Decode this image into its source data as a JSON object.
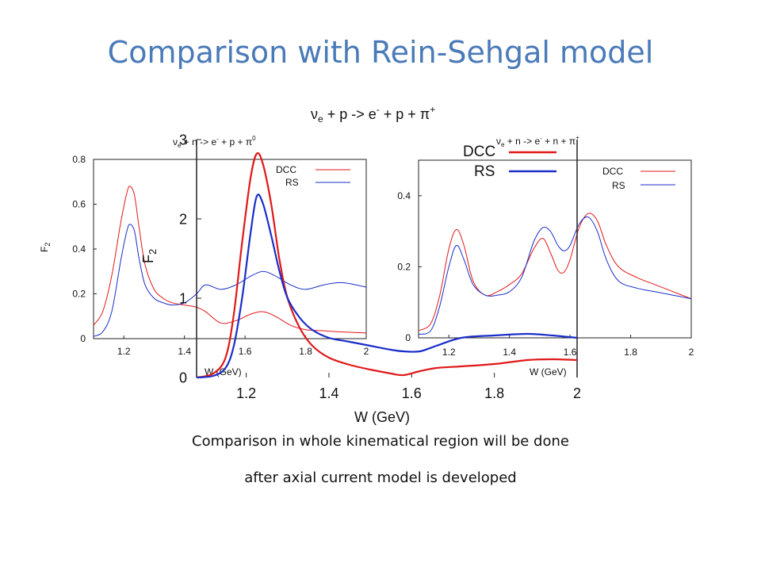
{
  "title": "Comparison with Rein-Sehgal model",
  "captions": [
    "Comparison in whole kinematical region will be done",
    "after axial current model is developed"
  ],
  "figure": {
    "main_reaction_label": "ν e + p -> e - + p + π +",
    "left_reaction_label": "ν e + n -> e - + p + π 0",
    "right_reaction_label": "ν e + n -> e - + n + π +",
    "x_axis_label": "W (GeV)",
    "y_axis_label": "F 2"
  },
  "colors": {
    "DCC": "#e01818",
    "RS": "#1a2ec8"
  },
  "chart_data": [
    {
      "id": "main",
      "type": "line",
      "title": "ν e + p -> e - + p + π +",
      "xlabel": "W (GeV)",
      "ylabel": "",
      "xlim": [
        1.08,
        2.0
      ],
      "ylim": [
        0,
        3
      ],
      "xticks": [
        "1.2",
        "1.4",
        "1.6",
        "1.8",
        "2"
      ],
      "yticks": [
        "0",
        "1",
        "2",
        "3"
      ],
      "legend": "top-center",
      "series": [
        {
          "name": "DCC",
          "color": "#e01818",
          "x": [
            1.08,
            1.12,
            1.15,
            1.17,
            1.19,
            1.21,
            1.225,
            1.24,
            1.26,
            1.28,
            1.3,
            1.33,
            1.36,
            1.4,
            1.45,
            1.5,
            1.55,
            1.58,
            1.62,
            1.66,
            1.72,
            1.8,
            1.88,
            1.94,
            2.0
          ],
          "y": [
            0.0,
            0.05,
            0.25,
            0.8,
            1.7,
            2.5,
            2.82,
            2.7,
            2.2,
            1.5,
            1.0,
            0.62,
            0.4,
            0.25,
            0.16,
            0.1,
            0.05,
            0.03,
            0.08,
            0.12,
            0.14,
            0.17,
            0.22,
            0.23,
            0.22
          ]
        },
        {
          "name": "RS",
          "color": "#1a2ec8",
          "x": [
            1.08,
            1.12,
            1.15,
            1.17,
            1.19,
            1.21,
            1.225,
            1.24,
            1.26,
            1.28,
            1.3,
            1.33,
            1.36,
            1.4,
            1.45,
            1.5,
            1.55,
            1.58,
            1.62,
            1.66,
            1.72,
            1.8,
            1.88,
            1.94,
            2.0
          ],
          "y": [
            0.0,
            0.02,
            0.12,
            0.4,
            1.0,
            1.8,
            2.28,
            2.2,
            1.8,
            1.35,
            1.0,
            0.75,
            0.6,
            0.5,
            0.45,
            0.4,
            0.35,
            0.33,
            0.33,
            0.4,
            0.5,
            0.53,
            0.55,
            0.53,
            0.5
          ]
        }
      ]
    },
    {
      "id": "inset-left",
      "type": "line",
      "title": "ν e + n -> e - + p + π 0",
      "xlabel": "W (GeV)",
      "ylabel": "F 2",
      "xlim": [
        1.1,
        2.0
      ],
      "ylim": [
        0,
        0.8
      ],
      "xticks": [
        "1.2",
        "1.4",
        "1.6",
        "1.8",
        "2"
      ],
      "yticks": [
        "0",
        "0.2",
        "0.4",
        "0.6",
        "0.8"
      ],
      "legend": "top-right",
      "series": [
        {
          "name": "DCC",
          "color": "#e01818",
          "x": [
            1.1,
            1.13,
            1.16,
            1.19,
            1.21,
            1.22,
            1.235,
            1.25,
            1.27,
            1.3,
            1.33,
            1.36,
            1.4,
            1.44,
            1.47,
            1.52,
            1.57,
            1.62,
            1.66,
            1.7,
            1.75,
            1.8,
            1.86,
            1.92,
            2.0
          ],
          "y": [
            0.06,
            0.12,
            0.28,
            0.52,
            0.65,
            0.68,
            0.64,
            0.5,
            0.33,
            0.22,
            0.18,
            0.16,
            0.15,
            0.14,
            0.12,
            0.07,
            0.08,
            0.11,
            0.12,
            0.1,
            0.06,
            0.04,
            0.035,
            0.03,
            0.025
          ]
        },
        {
          "name": "RS",
          "color": "#1a2ec8",
          "x": [
            1.1,
            1.13,
            1.16,
            1.19,
            1.21,
            1.22,
            1.235,
            1.25,
            1.27,
            1.3,
            1.33,
            1.36,
            1.4,
            1.44,
            1.47,
            1.52,
            1.57,
            1.62,
            1.66,
            1.7,
            1.75,
            1.8,
            1.86,
            1.92,
            2.0
          ],
          "y": [
            0.01,
            0.03,
            0.12,
            0.35,
            0.48,
            0.51,
            0.48,
            0.36,
            0.24,
            0.18,
            0.16,
            0.15,
            0.16,
            0.2,
            0.24,
            0.22,
            0.24,
            0.28,
            0.3,
            0.28,
            0.24,
            0.22,
            0.24,
            0.25,
            0.23
          ]
        }
      ]
    },
    {
      "id": "inset-right",
      "type": "line",
      "title": "ν e + n -> e - + n + π +",
      "xlabel": "W (GeV)",
      "ylabel": "",
      "xlim": [
        1.1,
        2.0
      ],
      "ylim": [
        0,
        0.5
      ],
      "xticks": [
        "1.2",
        "1.4",
        "1.6",
        "1.8",
        "2"
      ],
      "yticks": [
        "0",
        "0.2",
        "0.4"
      ],
      "legend": "top-right",
      "series": [
        {
          "name": "DCC",
          "color": "#e01818",
          "x": [
            1.1,
            1.14,
            1.17,
            1.2,
            1.225,
            1.25,
            1.28,
            1.32,
            1.36,
            1.4,
            1.44,
            1.48,
            1.51,
            1.535,
            1.56,
            1.58,
            1.6,
            1.63,
            1.66,
            1.69,
            1.72,
            1.76,
            1.82,
            1.88,
            1.94,
            2.0
          ],
          "y": [
            0.02,
            0.04,
            0.12,
            0.25,
            0.305,
            0.26,
            0.16,
            0.12,
            0.13,
            0.15,
            0.18,
            0.25,
            0.28,
            0.24,
            0.19,
            0.185,
            0.22,
            0.31,
            0.35,
            0.33,
            0.26,
            0.2,
            0.17,
            0.15,
            0.13,
            0.11
          ]
        },
        {
          "name": "RS",
          "color": "#1a2ec8",
          "x": [
            1.1,
            1.14,
            1.17,
            1.2,
            1.225,
            1.25,
            1.28,
            1.32,
            1.36,
            1.4,
            1.44,
            1.48,
            1.51,
            1.535,
            1.56,
            1.58,
            1.6,
            1.63,
            1.66,
            1.69,
            1.72,
            1.76,
            1.82,
            1.88,
            1.94,
            2.0
          ],
          "y": [
            0.01,
            0.02,
            0.09,
            0.2,
            0.26,
            0.22,
            0.15,
            0.12,
            0.12,
            0.13,
            0.17,
            0.27,
            0.31,
            0.3,
            0.26,
            0.245,
            0.26,
            0.32,
            0.34,
            0.3,
            0.22,
            0.16,
            0.14,
            0.13,
            0.12,
            0.11
          ]
        }
      ]
    }
  ]
}
